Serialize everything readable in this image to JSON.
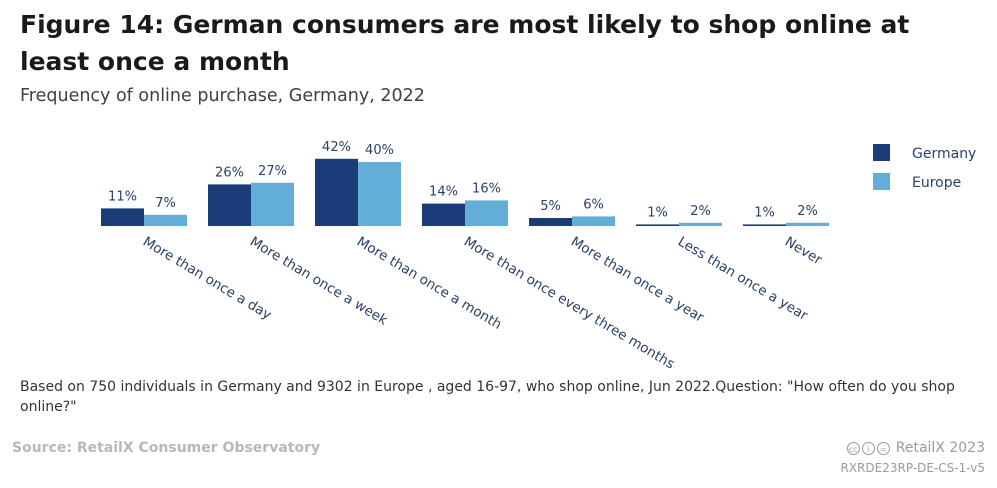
{
  "title": "Figure 14: German consumers are most likely to shop online at least once a month",
  "subtitle": "Frequency of online purchase, Germany, 2022",
  "note": "Based on 750 individuals in Germany and 9302 in Europe , aged 16-97, who shop online, Jun 2022.Question: \"How often do you shop online?\"",
  "source": "Source: RetailX Consumer Observatory",
  "brand": "RetailX 2023",
  "code": "RXRDE23RP-DE-CS-1-v5",
  "colors": {
    "germany": "#1b3c78",
    "europe": "#63aed9",
    "label": "#2a3f6b"
  },
  "chart_data": {
    "type": "bar",
    "title": "Frequency of online purchase, Germany, 2022",
    "categories": [
      "More than once a day",
      "More than once a week",
      "More than once a month",
      "More than once every three months",
      "More than once a year",
      "Less than once a year",
      "Never"
    ],
    "series": [
      {
        "name": "Germany",
        "values": [
          11,
          26,
          42,
          14,
          5,
          1,
          1
        ]
      },
      {
        "name": "Europe",
        "values": [
          7,
          27,
          40,
          16,
          6,
          2,
          2
        ]
      }
    ],
    "unit": "%",
    "ylim": [
      0,
      45
    ],
    "legend": "top-right",
    "grid": false
  }
}
